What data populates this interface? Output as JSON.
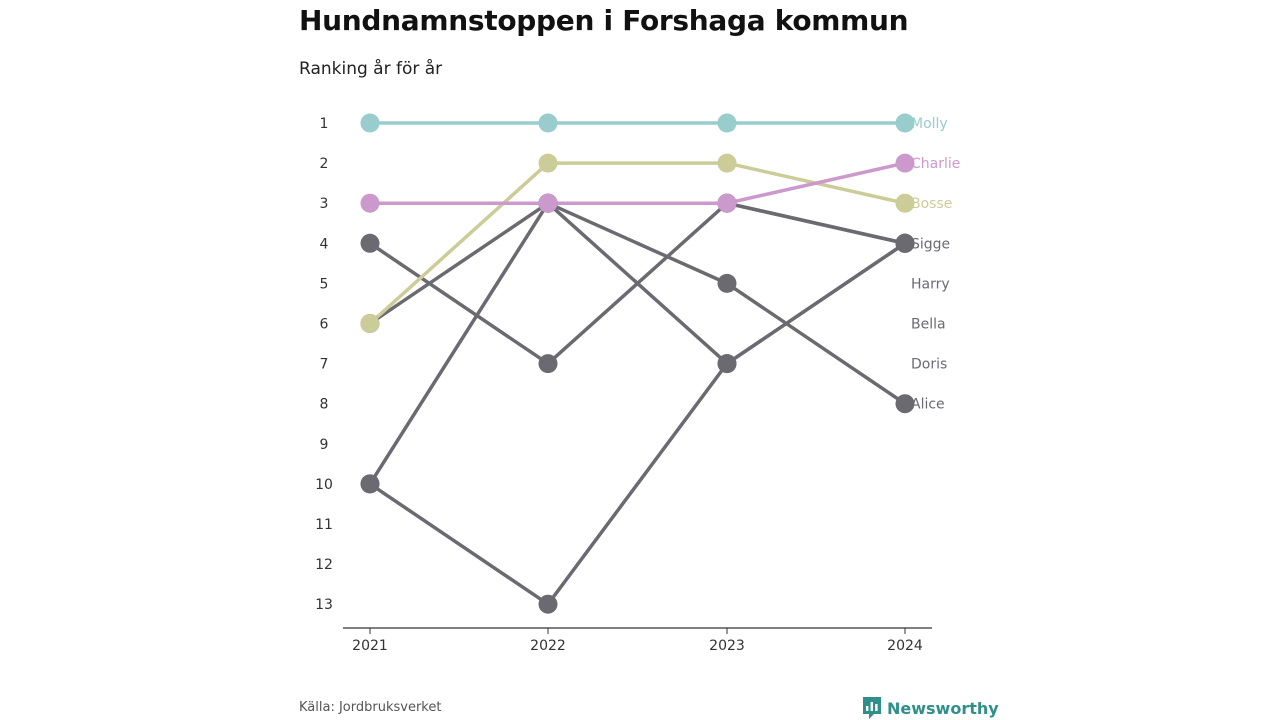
{
  "title": "Hundnamnstoppen i Forshaga kommun",
  "subtitle": "Ranking år för år",
  "source": "Källa: Jordbruksverket",
  "brand": {
    "name": "Newsworthy",
    "icon": "bar-chart-icon",
    "color": "#2f8f8a"
  },
  "chart_data": {
    "type": "line",
    "x": [
      "2021",
      "2022",
      "2023",
      "2024"
    ],
    "y_ticks": [
      "1",
      "2",
      "3",
      "4",
      "5",
      "6",
      "7",
      "8",
      "9",
      "10",
      "11",
      "12",
      "13"
    ],
    "ylim": [
      1,
      13
    ],
    "y_reversed": true,
    "grid": false,
    "series": [
      {
        "name": "Alice",
        "values": [
          10,
          3,
          5,
          8
        ],
        "color": "#6b6a70"
      },
      {
        "name": "Doris",
        "values": [
          4,
          7,
          3,
          4
        ],
        "color": "#6b6a70"
      },
      {
        "name": "Bella",
        "values": [
          6,
          3,
          7,
          4
        ],
        "color": "#6b6a70"
      },
      {
        "name": "Harry",
        "values": [
          10,
          13,
          7,
          4
        ],
        "color": "#6b6a70"
      },
      {
        "name": "Sigge",
        "values": [
          null,
          3,
          3,
          4
        ],
        "color": "#6b6a70"
      },
      {
        "name": "Bosse",
        "values": [
          6,
          2,
          2,
          3
        ],
        "color": "#cccc99"
      },
      {
        "name": "Charlie",
        "values": [
          3,
          3,
          3,
          2
        ],
        "color": "#cc99cc"
      },
      {
        "name": "Molly",
        "values": [
          1,
          1,
          1,
          1
        ],
        "color": "#99cccc"
      }
    ],
    "end_labels": [
      {
        "text": "Molly",
        "rank": 1,
        "color": "#99cccc"
      },
      {
        "text": "Charlie",
        "rank": 2,
        "color": "#cc99cc"
      },
      {
        "text": "Bosse",
        "rank": 3,
        "color": "#cccc99"
      },
      {
        "text": "Sigge",
        "rank": 4,
        "color": "#6b6a70"
      },
      {
        "text": "Harry",
        "rank": 5,
        "color": "#6b6a70"
      },
      {
        "text": "Bella",
        "rank": 6,
        "color": "#6b6a70"
      },
      {
        "text": "Doris",
        "rank": 7,
        "color": "#6b6a70"
      },
      {
        "text": "Alice",
        "rank": 8,
        "color": "#6b6a70"
      }
    ]
  }
}
